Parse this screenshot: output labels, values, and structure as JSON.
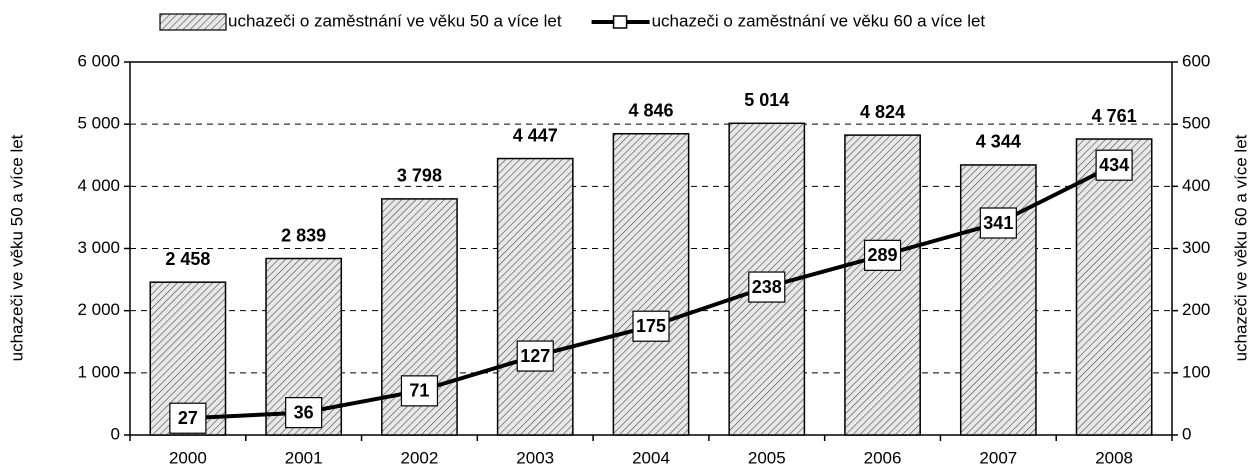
{
  "chart_data": {
    "type": "bar",
    "categories": [
      "2000",
      "2001",
      "2002",
      "2003",
      "2004",
      "2005",
      "2006",
      "2007",
      "2008"
    ],
    "series": [
      {
        "name": "uchazeči o zaměstnání ve věku 50 a více let",
        "type": "bar",
        "color": "#000000",
        "axis": "y",
        "values": [
          2458,
          2839,
          3798,
          4447,
          4846,
          5014,
          4824,
          4344,
          4761
        ],
        "value_labels": [
          "2 458",
          "2 839",
          "3 798",
          "4 447",
          "4 846",
          "5 014",
          "4 824",
          "4 344",
          "4 761"
        ]
      },
      {
        "name": "uchazeči o zaměstnání ve věku 60 a více let",
        "type": "line",
        "color": "#000000",
        "axis": "y2",
        "values": [
          27,
          36,
          71,
          127,
          175,
          238,
          289,
          341,
          434
        ]
      }
    ],
    "ylabel": "uchazeči ve věku 50 a více let",
    "y2label": "uchazeči ve věku 60 a více let",
    "ylim": [
      0,
      6000
    ],
    "yticks": [
      0,
      {
        "value": 1000,
        "label": "1 000"
      },
      {
        "value": 2000,
        "label": "2 000"
      },
      {
        "value": 3000,
        "label": "3 000"
      },
      {
        "value": 4000,
        "label": "4 000"
      },
      {
        "value": 5000,
        "label": "5 000"
      },
      {
        "value": 6000,
        "label": "6 000"
      }
    ],
    "y2lim": [
      0,
      600
    ],
    "y2ticks": [
      0,
      100,
      200,
      300,
      400,
      500,
      600
    ],
    "grid": true,
    "legend": "top"
  }
}
